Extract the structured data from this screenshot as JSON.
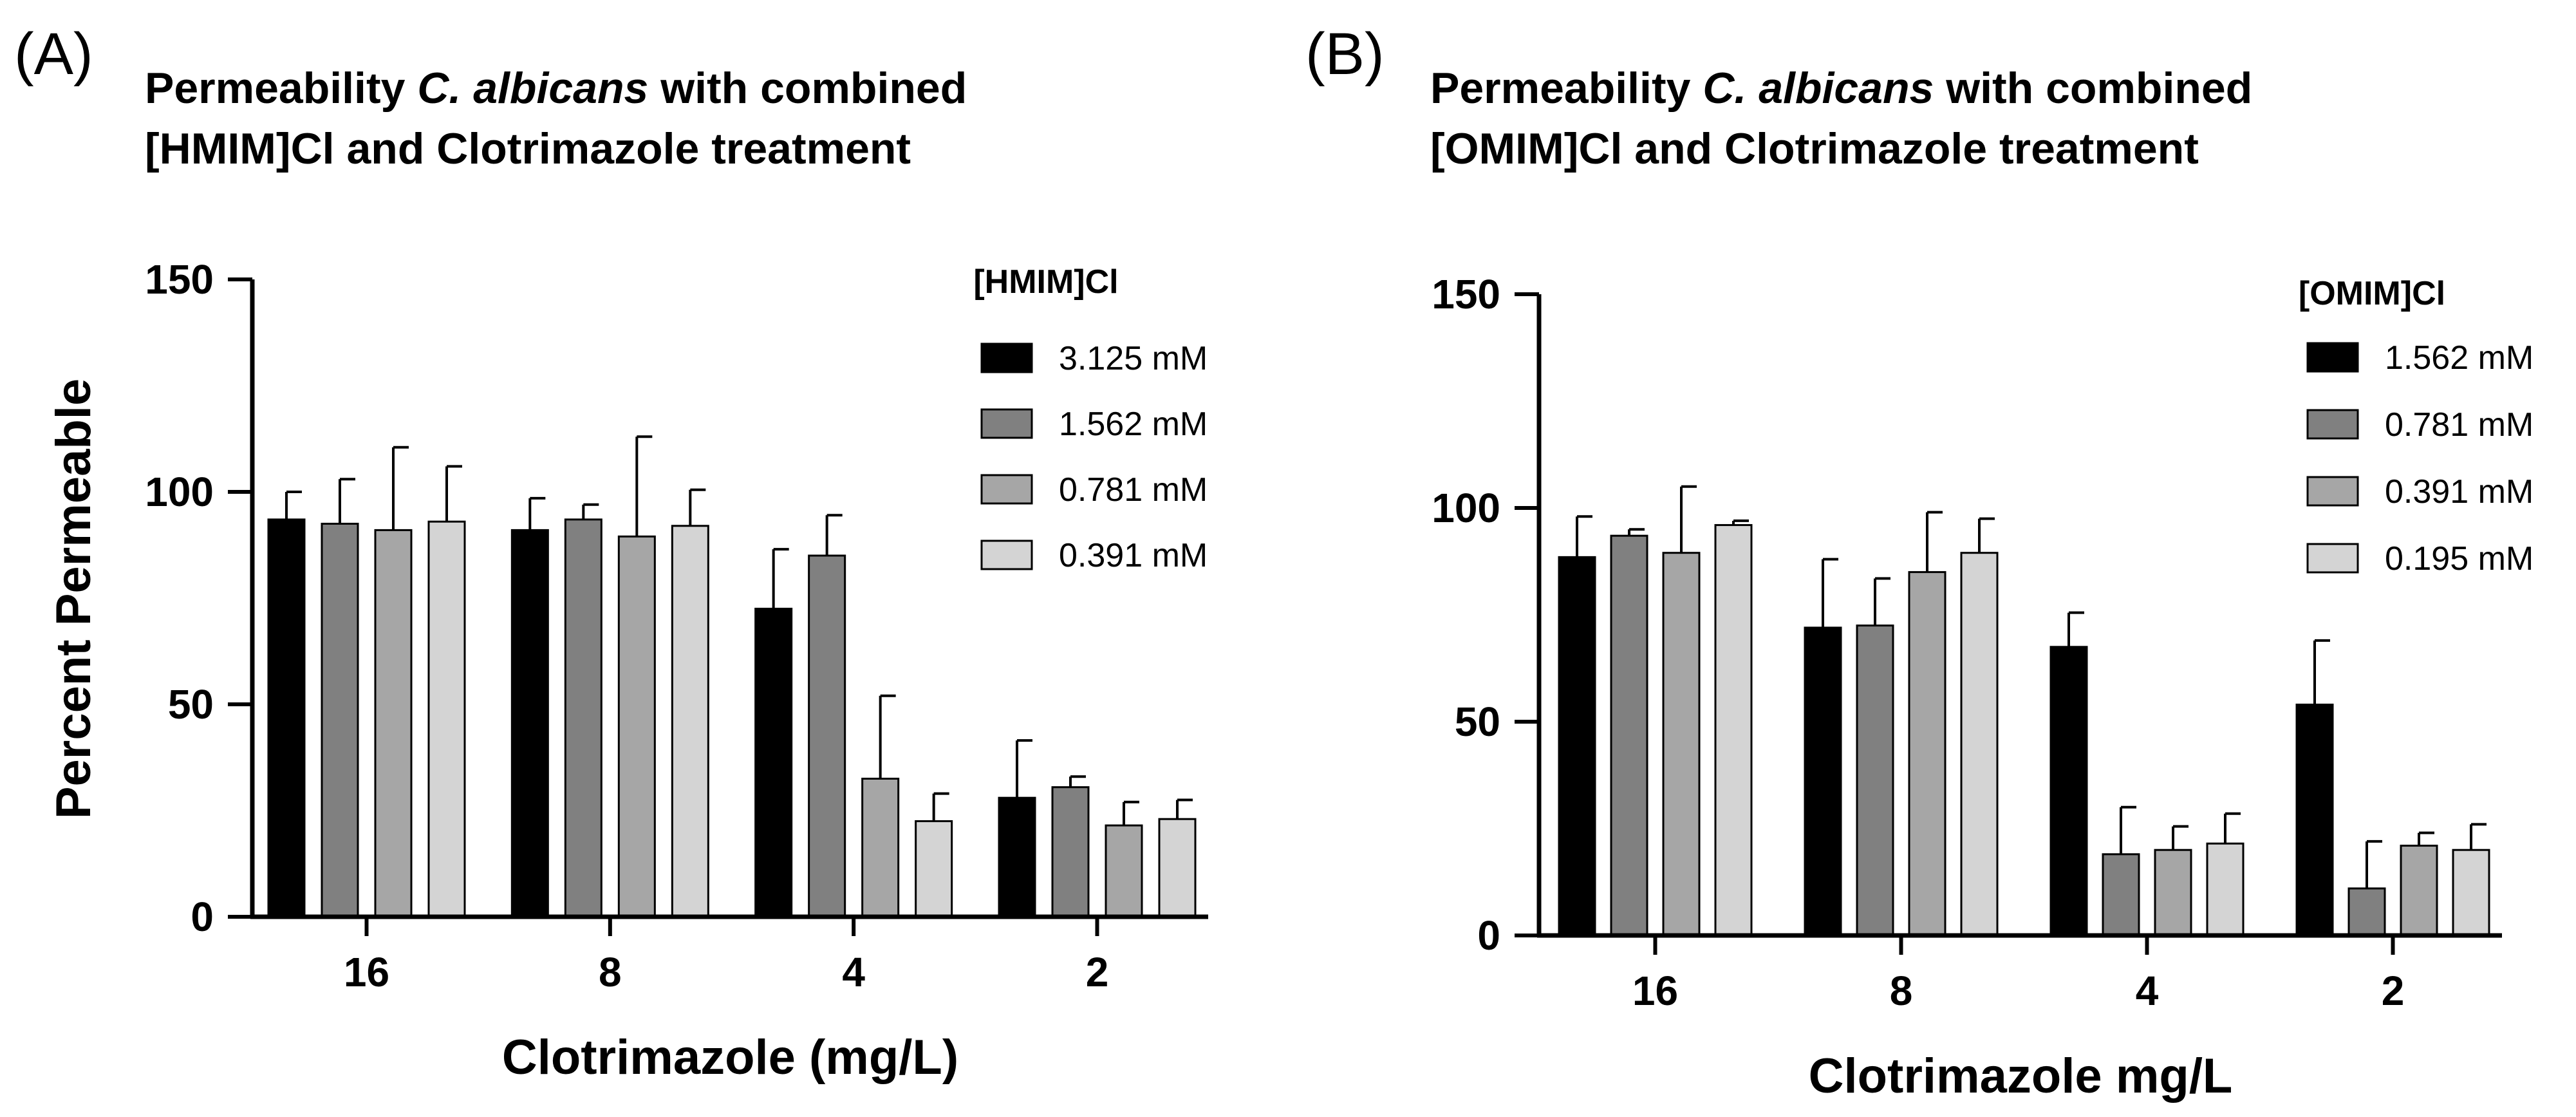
{
  "chart_data": [
    {
      "panel_label": "(A)",
      "type": "bar",
      "title": {
        "prefix": "Permeability ",
        "italic": "C. albicans",
        "suffix": " with combined",
        "line2": "[HMIM]Cl and Clotrimazole treatment"
      },
      "xlabel": "Clotrimazole (mg/L)",
      "ylabel": "Percent Permeable",
      "ylim": [
        0,
        150
      ],
      "yticks": [
        0,
        50,
        100,
        150
      ],
      "categories": [
        "16",
        "8",
        "4",
        "2"
      ],
      "legend_title": "[HMIM]Cl",
      "legend_position": "top-right",
      "series": [
        {
          "name": "3.125 mM",
          "color": "#000000",
          "values": [
            93.5,
            91,
            72.5,
            28
          ],
          "errors": [
            6.5,
            7.5,
            14,
            13.5
          ]
        },
        {
          "name": "1.562 mM",
          "color": "#808080",
          "values": [
            92.5,
            93.5,
            85,
            30.5
          ],
          "errors": [
            10.5,
            3.5,
            9.5,
            2.5
          ]
        },
        {
          "name": "0.781 mM",
          "color": "#a6a6a6",
          "values": [
            91,
            89.5,
            32.5,
            21.5
          ],
          "errors": [
            19.5,
            23.5,
            19.5,
            5.5
          ]
        },
        {
          "name": "0.391 mM",
          "color": "#d4d4d4",
          "values": [
            93,
            92,
            22.5,
            23
          ],
          "errors": [
            13,
            8.5,
            6.5,
            4.5
          ]
        }
      ]
    },
    {
      "panel_label": "(B)",
      "type": "bar",
      "title": {
        "prefix": "Permeability ",
        "italic": "C. albicans",
        "suffix": " with combined",
        "line2": "[OMIM]Cl and Clotrimazole treatment"
      },
      "xlabel": "Clotrimazole mg/L",
      "ylabel": "",
      "ylim": [
        0,
        150
      ],
      "yticks": [
        0,
        50,
        100,
        150
      ],
      "categories": [
        "16",
        "8",
        "4",
        "2"
      ],
      "legend_title": "[OMIM]Cl",
      "legend_position": "top-right",
      "series": [
        {
          "name": "1.562 mM",
          "color": "#000000",
          "values": [
            88.5,
            72,
            67.5,
            54
          ],
          "errors": [
            9.5,
            16,
            8,
            15
          ]
        },
        {
          "name": "0.781 mM",
          "color": "#808080",
          "values": [
            93.5,
            72.5,
            19,
            11
          ],
          "errors": [
            1.5,
            11,
            11,
            11
          ]
        },
        {
          "name": "0.391 mM",
          "color": "#a6a6a6",
          "values": [
            89.5,
            85,
            20,
            21
          ],
          "errors": [
            15.5,
            14,
            5.5,
            3
          ]
        },
        {
          "name": "0.195 mM",
          "color": "#d4d4d4",
          "values": [
            96,
            89.5,
            21.5,
            20
          ],
          "errors": [
            1,
            8,
            7,
            6
          ]
        }
      ]
    }
  ]
}
